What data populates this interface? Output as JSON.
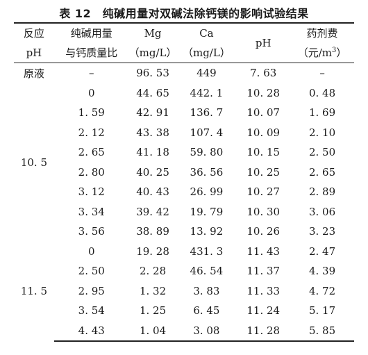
{
  "caption": "表 12　纯碱用量对双碱法除钙镁的影响试验结果",
  "headers": {
    "reaction_ph_line1": "反应",
    "reaction_ph_line2": "pH",
    "soda_ratio_line1": "纯碱用量",
    "soda_ratio_line2": "与钙质量比",
    "mg_line1": "Mg",
    "mg_line2": "（mg/L）",
    "ca_line1": "Ca",
    "ca_line2": "（mg/L）",
    "ph": "pH",
    "cost_line1": "药剂费",
    "cost_line2a": "（元/m",
    "cost_sup": "3",
    "cost_line2b": "）"
  },
  "raw": {
    "label": "原液",
    "ratio": "–",
    "mg": "96. 53",
    "ca": "449",
    "ph": "7. 63",
    "cost": "–"
  },
  "groups": [
    {
      "reaction_ph": "10. 5",
      "rows": [
        {
          "ratio": "0",
          "mg": "44. 65",
          "ca": "442. 1",
          "ph": "10. 28",
          "cost": "0. 48"
        },
        {
          "ratio": "1. 59",
          "mg": "42. 91",
          "ca": "136. 7",
          "ph": "10. 07",
          "cost": "1. 69"
        },
        {
          "ratio": "2. 12",
          "mg": "43. 38",
          "ca": "107. 4",
          "ph": "10. 09",
          "cost": "2. 10"
        },
        {
          "ratio": "2. 65",
          "mg": "41. 18",
          "ca": "59. 80",
          "ph": "10. 15",
          "cost": "2. 50"
        },
        {
          "ratio": "2. 80",
          "mg": "40. 25",
          "ca": "36. 56",
          "ph": "10. 25",
          "cost": "2. 65"
        },
        {
          "ratio": "3. 12",
          "mg": "40. 43",
          "ca": "26. 99",
          "ph": "10. 27",
          "cost": "2. 89"
        },
        {
          "ratio": "3. 34",
          "mg": "39. 42",
          "ca": "19. 79",
          "ph": "10. 30",
          "cost": "3. 06"
        },
        {
          "ratio": "3. 56",
          "mg": "38. 89",
          "ca": "13. 92",
          "ph": "10. 26",
          "cost": "3. 23"
        }
      ]
    },
    {
      "reaction_ph": "11. 5",
      "rows": [
        {
          "ratio": "0",
          "mg": "19. 28",
          "ca": "431. 3",
          "ph": "11. 43",
          "cost": "2. 47"
        },
        {
          "ratio": "2. 50",
          "mg": "2. 28",
          "ca": "46. 54",
          "ph": "11. 37",
          "cost": "4. 39"
        },
        {
          "ratio": "2. 95",
          "mg": "1. 32",
          "ca": "3. 83",
          "ph": "11. 33",
          "cost": "4. 72"
        },
        {
          "ratio": "3. 54",
          "mg": "1. 25",
          "ca": "6. 45",
          "ph": "11. 24",
          "cost": "5. 17"
        },
        {
          "ratio": "4. 43",
          "mg": "1. 04",
          "ca": "3. 08",
          "ph": "11. 28",
          "cost": "5. 85"
        }
      ]
    }
  ]
}
